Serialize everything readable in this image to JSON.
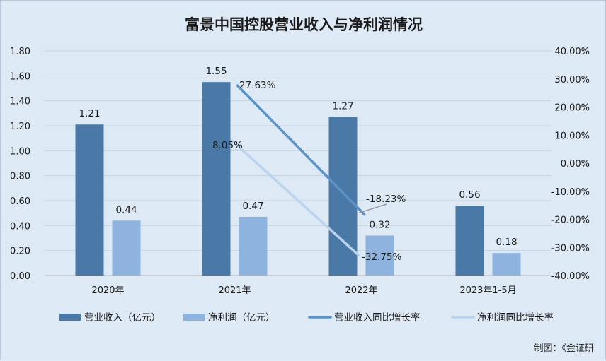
{
  "chart_data": {
    "type": "bar",
    "title": "富景中国控股营业收入与净利润情况",
    "categories": [
      "2020年",
      "2021年",
      "2022年",
      "2023年1-5月"
    ],
    "series": [
      {
        "name": "营业收入（亿元）",
        "type": "bar",
        "axis": "left",
        "color": "#4a79a8",
        "values": [
          1.21,
          1.55,
          1.27,
          0.56
        ],
        "labels": [
          "1.21",
          "1.55",
          "1.27",
          "0.56"
        ]
      },
      {
        "name": "净利润（亿元）",
        "type": "bar",
        "axis": "left",
        "color": "#8db3de",
        "values": [
          0.44,
          0.47,
          0.32,
          0.18
        ],
        "labels": [
          "0.44",
          "0.47",
          "0.32",
          "0.18"
        ]
      },
      {
        "name": "营业收入同比增长率",
        "type": "line",
        "axis": "right",
        "color": "#5b93c9",
        "values": [
          null,
          27.63,
          -18.23,
          null
        ],
        "labels": [
          "",
          "27.63%",
          "-18.23%",
          ""
        ]
      },
      {
        "name": "净利润同比增长率",
        "type": "line",
        "axis": "right",
        "color": "#bcd3ec",
        "values": [
          null,
          8.05,
          -32.75,
          null
        ],
        "labels": [
          "",
          "8.05%",
          "-32.75%",
          ""
        ]
      }
    ],
    "y_left": {
      "min": 0,
      "max": 1.8,
      "step": 0.2,
      "ticks": [
        "0.00",
        "0.20",
        "0.40",
        "0.60",
        "0.80",
        "1.00",
        "1.20",
        "1.40",
        "1.60",
        "1.80"
      ]
    },
    "y_right": {
      "min": -40,
      "max": 40,
      "step": 10,
      "ticks": [
        "-40.00%",
        "-30.00%",
        "-20.00%",
        "-10.00%",
        "0.00%",
        "10.00%",
        "20.00%",
        "30.00%",
        "40.00%"
      ]
    },
    "grid": true,
    "legend_position": "bottom"
  },
  "footer": {
    "credit": "制图：《金证研"
  }
}
